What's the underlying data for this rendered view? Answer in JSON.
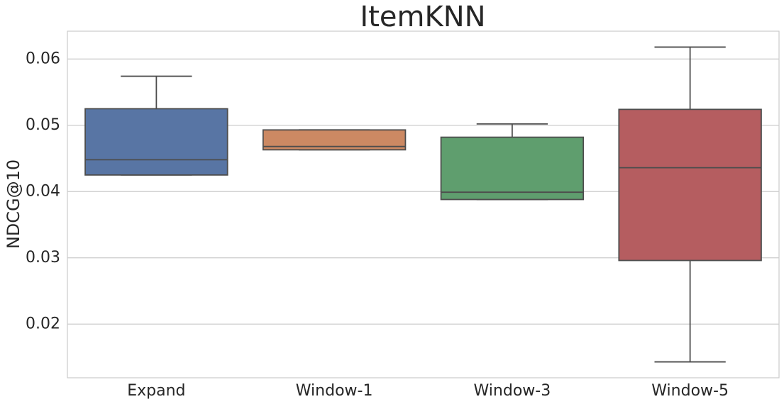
{
  "chart_data": {
    "type": "box",
    "title": "ItemKNN",
    "y_label": "NDCG@10",
    "categories": [
      "Expand",
      "Window-1",
      "Window-3",
      "Window-5"
    ],
    "colors": [
      "#5875a4",
      "#cc8963",
      "#5f9e6e",
      "#b55d60"
    ],
    "min": [
      0.0425,
      0.0463,
      0.0388,
      0.0143
    ],
    "q1": [
      0.0425,
      0.0463,
      0.0388,
      0.0296
    ],
    "median": [
      0.0448,
      0.0468,
      0.0399,
      0.0436
    ],
    "q3": [
      0.0525,
      0.0493,
      0.0482,
      0.0524
    ],
    "max": [
      0.0574,
      0.0493,
      0.0502,
      0.0618
    ],
    "ylim": [
      0.0119,
      0.0642
    ],
    "yticks": [
      0.02,
      0.03,
      0.04,
      0.05,
      0.06
    ],
    "grid": true
  }
}
